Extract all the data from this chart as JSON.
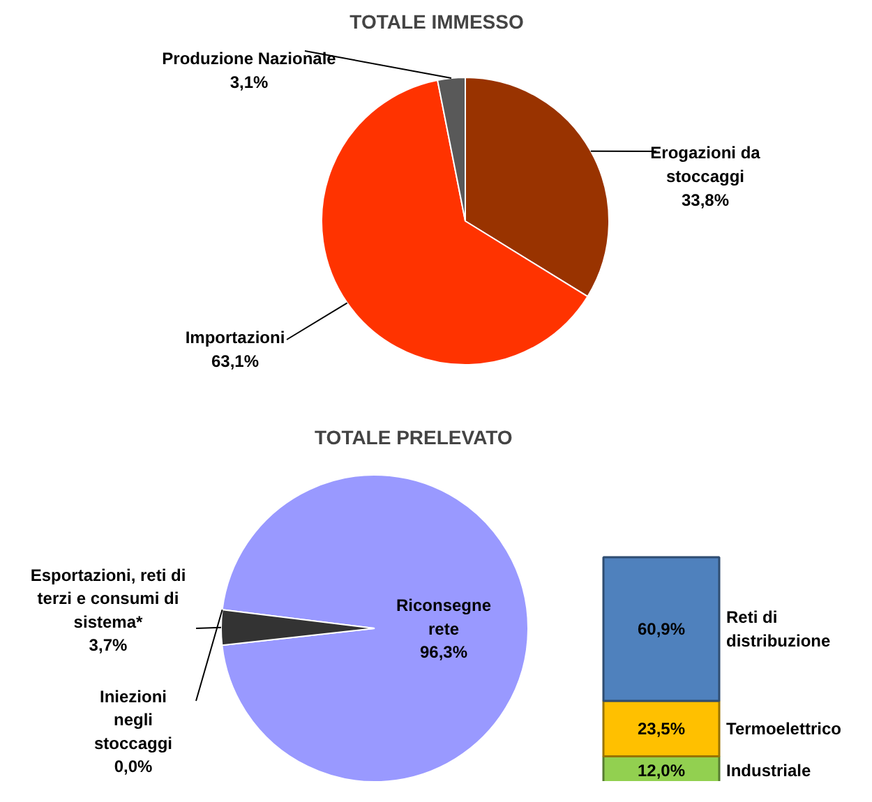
{
  "chart_data": [
    {
      "type": "pie",
      "title": "TOTALE IMMESSO",
      "categories": [
        "Erogazioni da stoccaggi",
        "Importazioni",
        "Produzione Nazionale"
      ],
      "values": [
        33.8,
        63.1,
        3.1
      ],
      "colors": [
        "#993300",
        "#ff3300",
        "#595959"
      ],
      "value_labels": [
        "33,8%",
        "63,1%",
        "3,1%"
      ]
    },
    {
      "type": "pie",
      "title": "TOTALE PRELEVATO",
      "categories": [
        "Riconsegne rete",
        "Esportazioni, reti di terzi e consumi di sistema*",
        "Iniezioni negli stoccaggi"
      ],
      "values": [
        96.3,
        3.7,
        0.0
      ],
      "colors": [
        "#9999ff",
        "#333333",
        "#000000"
      ],
      "value_labels": [
        "96,3%",
        "3,7%",
        "0,0%"
      ]
    },
    {
      "type": "bar",
      "stacked": true,
      "categories": [
        null
      ],
      "series": [
        {
          "name": "Industriale",
          "color": "#92d050",
          "values": [
            12.0
          ],
          "value_labels": [
            "12,0%"
          ]
        },
        {
          "name": "Termoelettrico",
          "color": "#ffc000",
          "values": [
            23.5
          ],
          "value_labels": [
            "23,5%"
          ]
        },
        {
          "name": "Reti di distribuzione",
          "color": "#4f81bd",
          "values": [
            60.9
          ],
          "value_labels": [
            "60,9%"
          ]
        }
      ]
    }
  ]
}
